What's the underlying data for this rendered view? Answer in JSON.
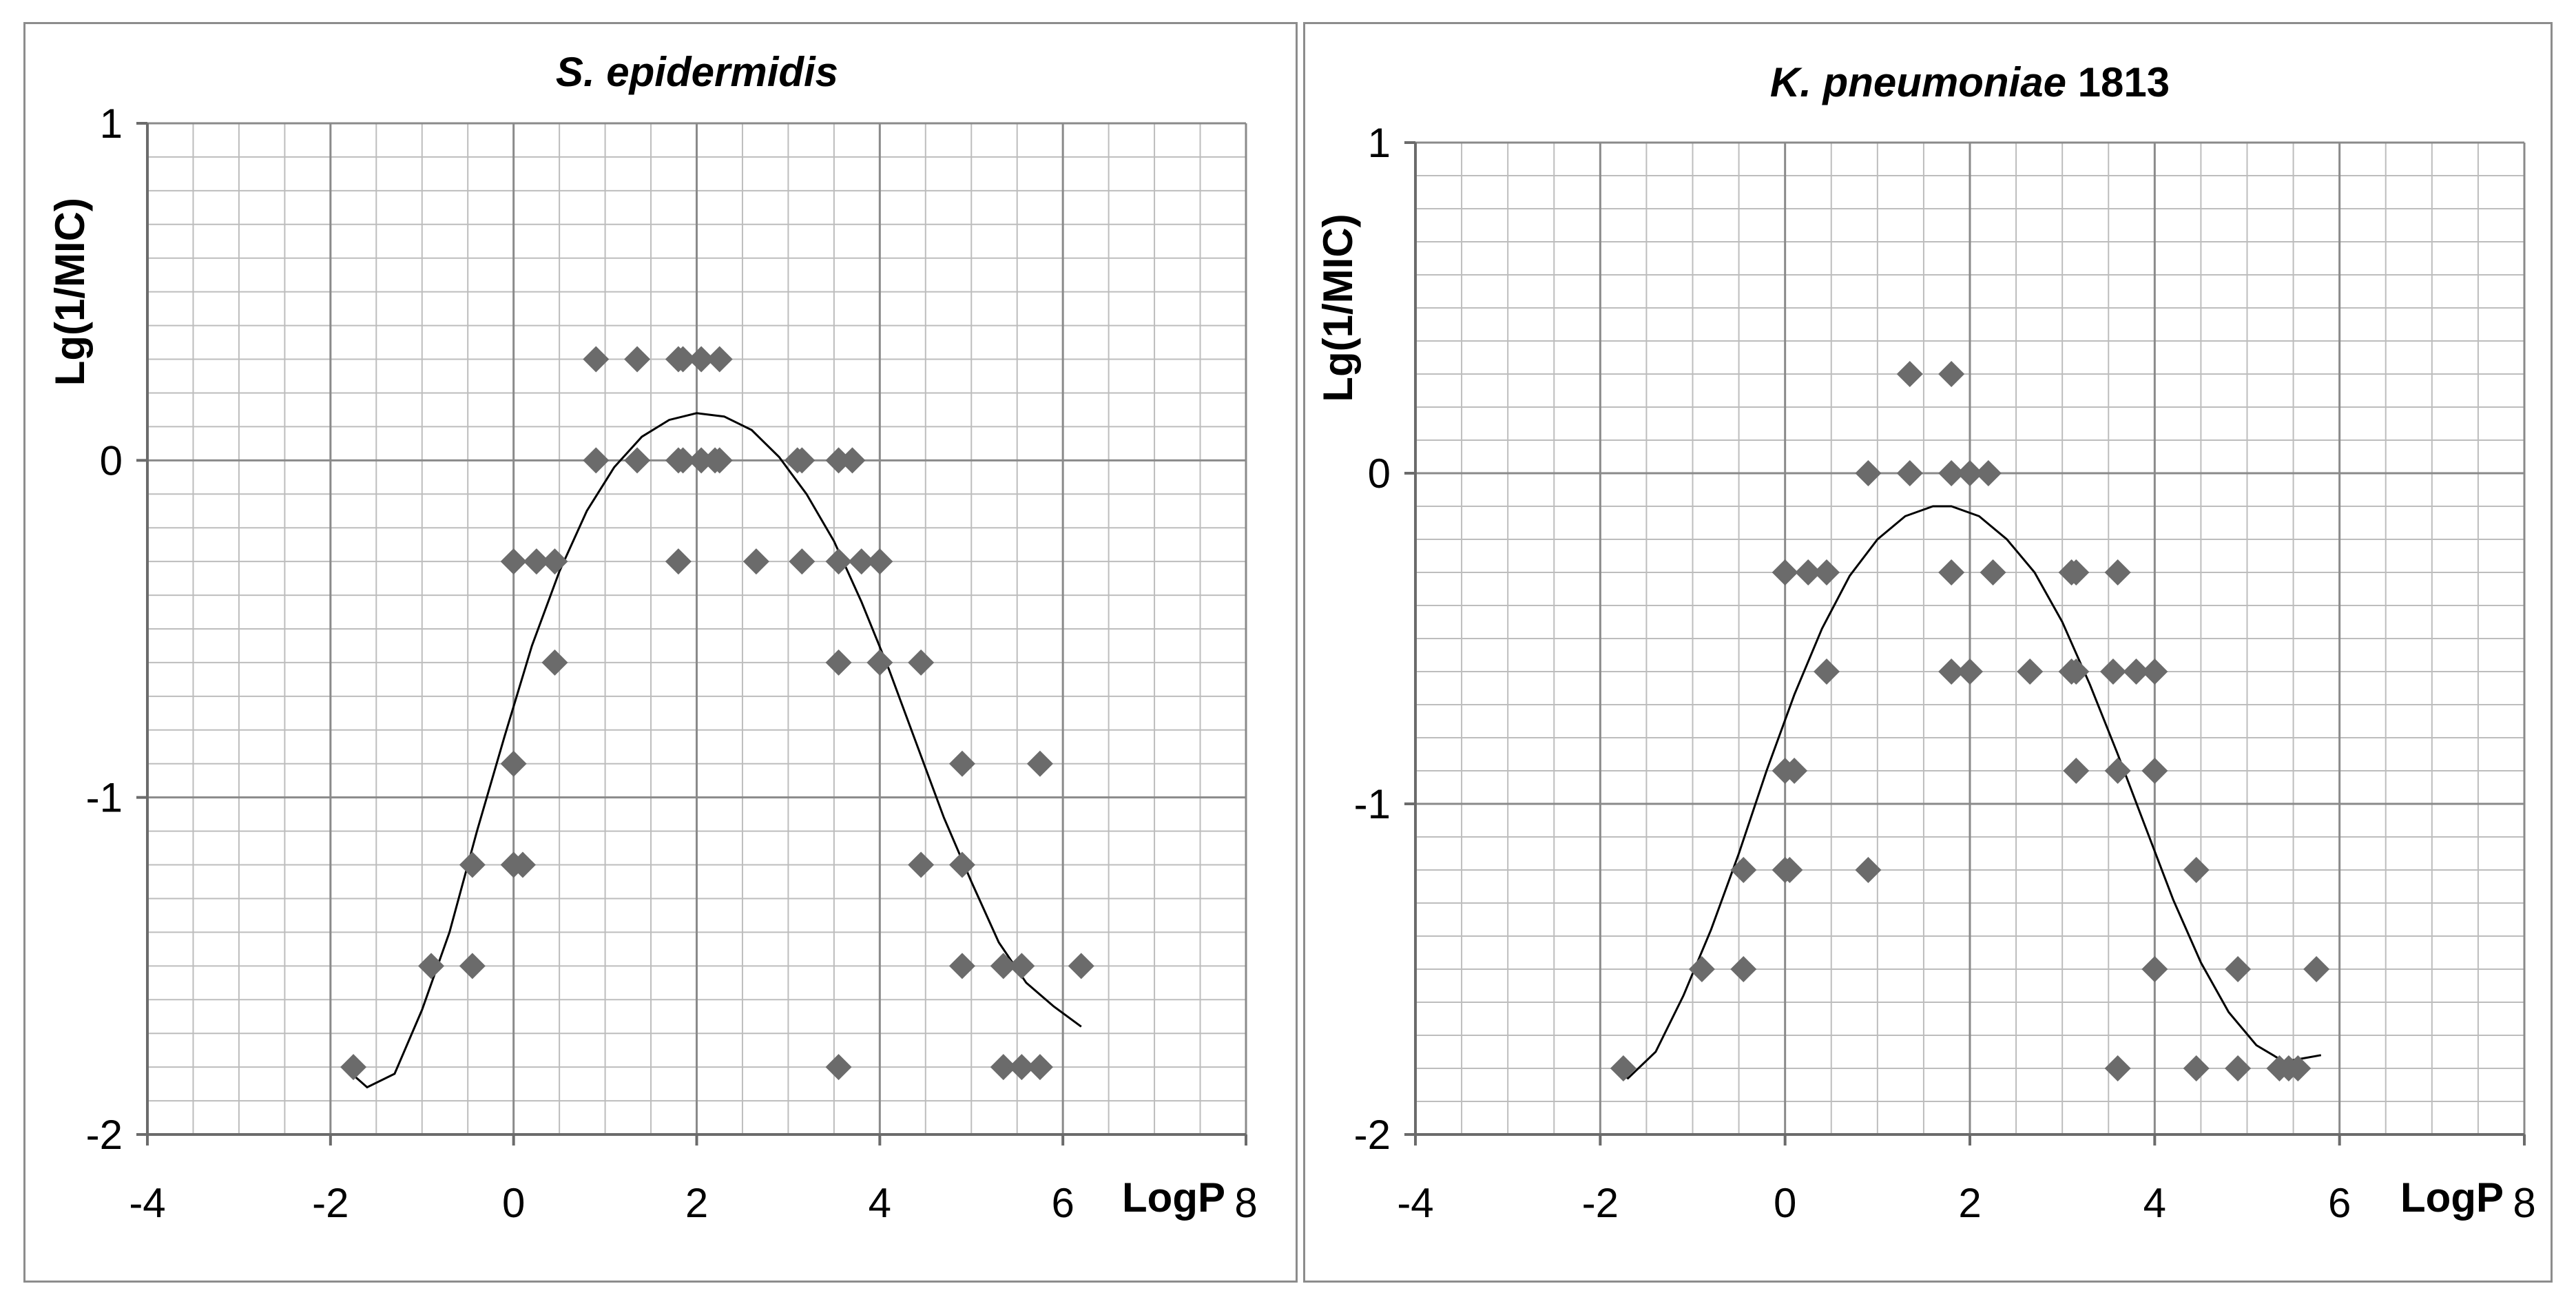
{
  "colors": {
    "marker": "#6b6b6b",
    "grid": "#bdbdbd",
    "axis": "#6b6b6b",
    "curve": "#000000",
    "border": "#8c8c8c"
  },
  "chart_data": [
    {
      "type": "scatter",
      "title_italic": "S. epidermidis",
      "title_rest": "",
      "xlabel": "LogP",
      "ylabel": "Lg(1/MIC)",
      "xlim": [
        -4,
        8
      ],
      "ylim": [
        -2,
        1
      ],
      "xticks": [
        -4,
        -2,
        0,
        2,
        4,
        6,
        8
      ],
      "yticks": [
        -2,
        -1,
        0,
        1
      ],
      "x_minor_step": 0.5,
      "y_minor_step": 0.1,
      "points": [
        [
          -1.75,
          -1.8
        ],
        [
          -0.9,
          -1.5
        ],
        [
          -0.45,
          -1.5
        ],
        [
          -0.45,
          -1.2
        ],
        [
          0.0,
          -1.2
        ],
        [
          0.1,
          -1.2
        ],
        [
          0.0,
          -0.9
        ],
        [
          0.45,
          -0.6
        ],
        [
          0.0,
          -0.3
        ],
        [
          0.25,
          -0.3
        ],
        [
          0.45,
          -0.3
        ],
        [
          0.9,
          0.0
        ],
        [
          0.9,
          0.3
        ],
        [
          1.35,
          0.3
        ],
        [
          1.35,
          0.0
        ],
        [
          1.8,
          0.3
        ],
        [
          1.85,
          0.3
        ],
        [
          2.05,
          0.3
        ],
        [
          2.25,
          0.3
        ],
        [
          1.8,
          0.0
        ],
        [
          1.85,
          0.0
        ],
        [
          2.05,
          0.0
        ],
        [
          2.2,
          0.0
        ],
        [
          2.25,
          0.0
        ],
        [
          1.8,
          -0.3
        ],
        [
          2.65,
          -0.3
        ],
        [
          3.1,
          0.0
        ],
        [
          3.15,
          0.0
        ],
        [
          3.55,
          0.0
        ],
        [
          3.7,
          0.0
        ],
        [
          3.15,
          -0.3
        ],
        [
          3.55,
          -0.3
        ],
        [
          3.8,
          -0.3
        ],
        [
          4.0,
          -0.3
        ],
        [
          3.55,
          -0.6
        ],
        [
          4.0,
          -0.6
        ],
        [
          4.45,
          -0.6
        ],
        [
          4.45,
          -1.2
        ],
        [
          4.9,
          -0.9
        ],
        [
          4.9,
          -1.2
        ],
        [
          4.9,
          -1.5
        ],
        [
          5.35,
          -1.5
        ],
        [
          5.55,
          -1.5
        ],
        [
          6.2,
          -1.5
        ],
        [
          5.75,
          -0.9
        ],
        [
          3.55,
          -1.8
        ],
        [
          5.35,
          -1.8
        ],
        [
          5.55,
          -1.8
        ],
        [
          5.75,
          -1.8
        ]
      ],
      "curve": [
        [
          -1.85,
          -1.8
        ],
        [
          -1.6,
          -1.86
        ],
        [
          -1.3,
          -1.82
        ],
        [
          -1.0,
          -1.63
        ],
        [
          -0.7,
          -1.4
        ],
        [
          -0.4,
          -1.1
        ],
        [
          -0.1,
          -0.82
        ],
        [
          0.2,
          -0.55
        ],
        [
          0.5,
          -0.33
        ],
        [
          0.8,
          -0.15
        ],
        [
          1.1,
          -0.02
        ],
        [
          1.4,
          0.07
        ],
        [
          1.7,
          0.12
        ],
        [
          2.0,
          0.14
        ],
        [
          2.3,
          0.13
        ],
        [
          2.6,
          0.09
        ],
        [
          2.9,
          0.01
        ],
        [
          3.2,
          -0.1
        ],
        [
          3.5,
          -0.24
        ],
        [
          3.8,
          -0.42
        ],
        [
          4.1,
          -0.62
        ],
        [
          4.4,
          -0.84
        ],
        [
          4.7,
          -1.06
        ],
        [
          5.0,
          -1.25
        ],
        [
          5.3,
          -1.43
        ],
        [
          5.6,
          -1.55
        ],
        [
          5.9,
          -1.62
        ],
        [
          6.2,
          -1.68
        ]
      ]
    },
    {
      "type": "scatter",
      "title_italic": "K. pneumoniae",
      "title_rest": " 1813",
      "xlabel": "LogP",
      "ylabel": "Lg(1/MIC)",
      "xlim": [
        -4,
        8
      ],
      "ylim": [
        -2,
        1
      ],
      "xticks": [
        -4,
        -2,
        0,
        2,
        4,
        6,
        8
      ],
      "yticks": [
        -2,
        -1,
        0,
        1
      ],
      "x_minor_step": 0.5,
      "y_minor_step": 0.1,
      "points": [
        [
          -1.75,
          -1.8
        ],
        [
          -0.9,
          -1.5
        ],
        [
          -0.45,
          -1.5
        ],
        [
          -0.45,
          -1.2
        ],
        [
          0.0,
          -1.2
        ],
        [
          0.05,
          -1.2
        ],
        [
          0.0,
          -0.9
        ],
        [
          0.1,
          -0.9
        ],
        [
          0.45,
          -0.6
        ],
        [
          0.0,
          -0.3
        ],
        [
          0.25,
          -0.3
        ],
        [
          0.45,
          -0.3
        ],
        [
          0.9,
          0.0
        ],
        [
          0.9,
          -1.2
        ],
        [
          1.35,
          0.3
        ],
        [
          1.35,
          0.0
        ],
        [
          1.8,
          0.3
        ],
        [
          1.8,
          0.0
        ],
        [
          2.0,
          0.0
        ],
        [
          2.2,
          0.0
        ],
        [
          1.8,
          -0.3
        ],
        [
          2.25,
          -0.3
        ],
        [
          1.8,
          -0.6
        ],
        [
          2.0,
          -0.6
        ],
        [
          2.65,
          -0.6
        ],
        [
          3.1,
          -0.3
        ],
        [
          3.15,
          -0.3
        ],
        [
          3.6,
          -0.3
        ],
        [
          3.1,
          -0.6
        ],
        [
          3.15,
          -0.6
        ],
        [
          3.55,
          -0.6
        ],
        [
          3.8,
          -0.6
        ],
        [
          4.0,
          -0.6
        ],
        [
          3.15,
          -0.9
        ],
        [
          3.6,
          -0.9
        ],
        [
          4.0,
          -0.9
        ],
        [
          4.45,
          -1.2
        ],
        [
          4.0,
          -1.5
        ],
        [
          4.9,
          -1.5
        ],
        [
          5.75,
          -1.5
        ],
        [
          3.6,
          -1.8
        ],
        [
          4.45,
          -1.8
        ],
        [
          4.9,
          -1.8
        ],
        [
          5.35,
          -1.8
        ],
        [
          5.45,
          -1.8
        ],
        [
          5.55,
          -1.8
        ]
      ],
      "curve": [
        [
          -1.85,
          -1.8
        ],
        [
          -1.7,
          -1.83
        ],
        [
          -1.4,
          -1.75
        ],
        [
          -1.1,
          -1.58
        ],
        [
          -0.8,
          -1.38
        ],
        [
          -0.5,
          -1.15
        ],
        [
          -0.2,
          -0.9
        ],
        [
          0.1,
          -0.67
        ],
        [
          0.4,
          -0.47
        ],
        [
          0.7,
          -0.31
        ],
        [
          1.0,
          -0.2
        ],
        [
          1.3,
          -0.13
        ],
        [
          1.6,
          -0.1
        ],
        [
          1.8,
          -0.1
        ],
        [
          2.1,
          -0.13
        ],
        [
          2.4,
          -0.2
        ],
        [
          2.7,
          -0.3
        ],
        [
          3.0,
          -0.45
        ],
        [
          3.3,
          -0.64
        ],
        [
          3.6,
          -0.85
        ],
        [
          3.9,
          -1.07
        ],
        [
          4.2,
          -1.29
        ],
        [
          4.5,
          -1.48
        ],
        [
          4.8,
          -1.63
        ],
        [
          5.1,
          -1.73
        ],
        [
          5.4,
          -1.78
        ],
        [
          5.6,
          -1.77
        ],
        [
          5.8,
          -1.76
        ]
      ]
    }
  ]
}
